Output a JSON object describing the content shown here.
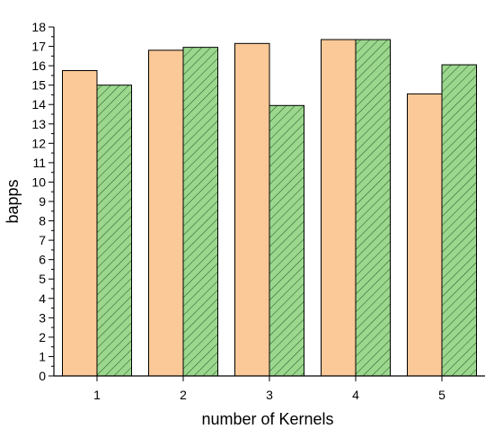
{
  "chart_data": {
    "type": "bar",
    "title": "",
    "xlabel": "number of Kernels",
    "ylabel": "bapps",
    "categories": [
      "1",
      "2",
      "3",
      "4",
      "5"
    ],
    "ylim": [
      0,
      18
    ],
    "yticks": [
      0,
      1,
      2,
      3,
      4,
      5,
      6,
      7,
      8,
      9,
      10,
      11,
      12,
      13,
      14,
      15,
      16,
      17,
      18
    ],
    "grid": false,
    "legend": "none",
    "series": [
      {
        "values": [
          15.75,
          16.8,
          17.15,
          17.35,
          14.55
        ],
        "color": "#FBC898",
        "pattern": "solid"
      },
      {
        "values": [
          15.0,
          16.95,
          13.95,
          17.35,
          16.05
        ],
        "color": "#9BD88E",
        "pattern": "diagonal-hatch"
      }
    ]
  }
}
